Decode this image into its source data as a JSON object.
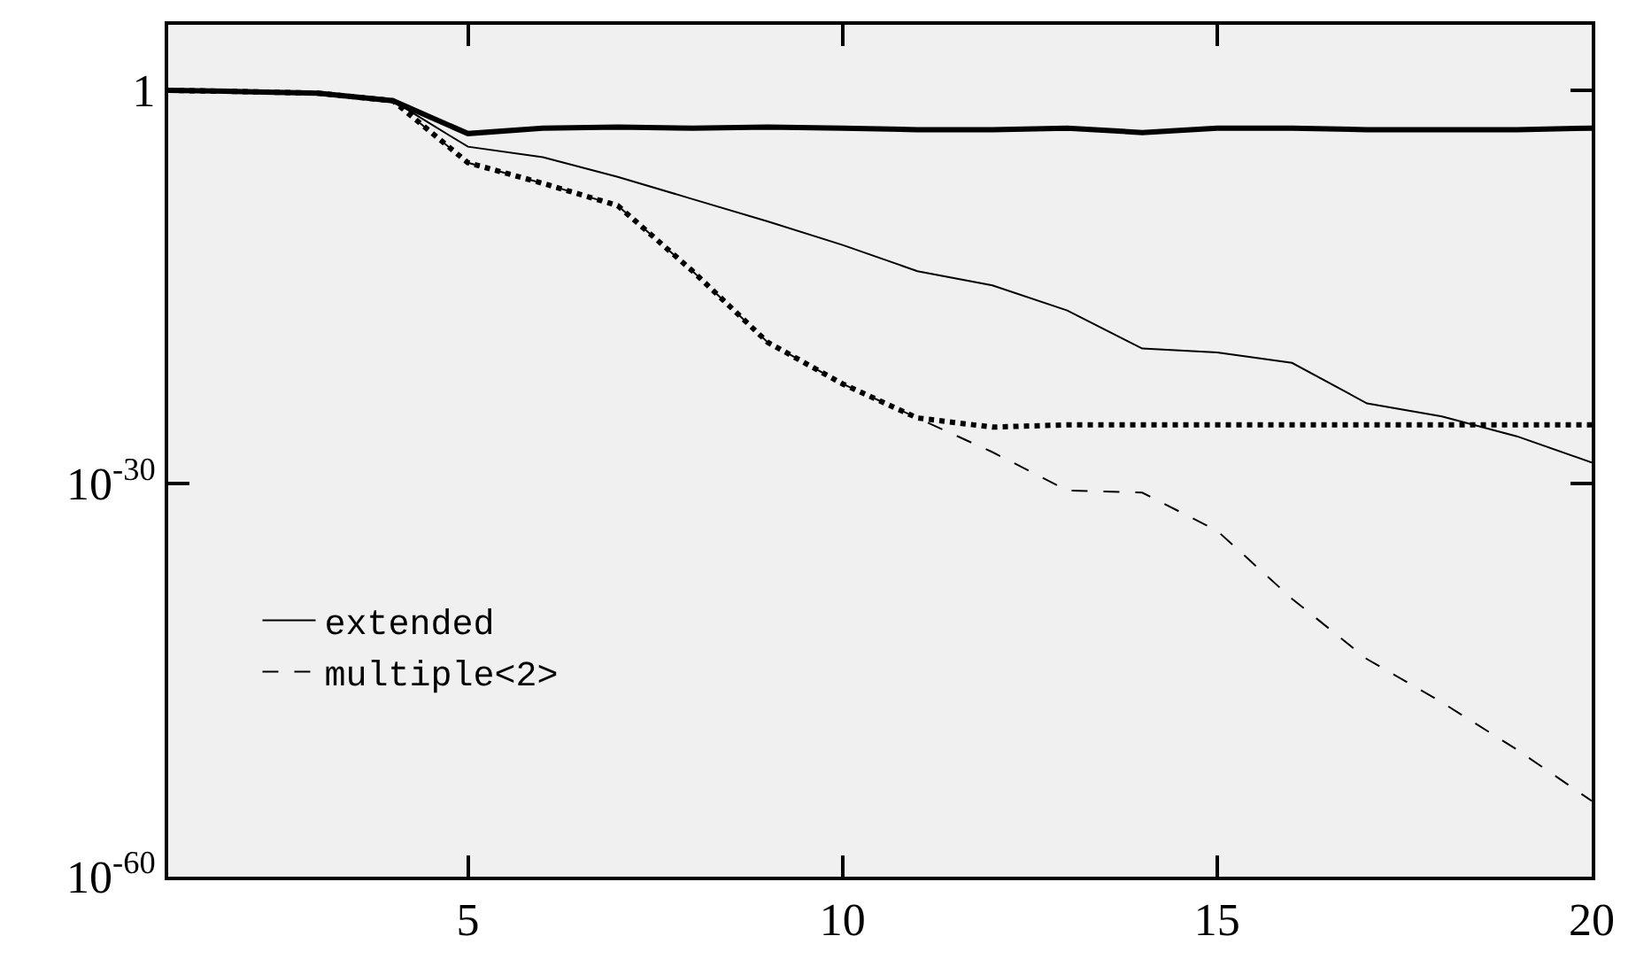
{
  "chart_data": {
    "type": "line",
    "log": "y",
    "xlim": [
      1,
      20
    ],
    "xticks": [
      5,
      10,
      15,
      20
    ],
    "ylim": [
      1e-60,
      100000.0
    ],
    "yticks": [
      {
        "value": 1,
        "label": "1"
      },
      {
        "value": 1e-30,
        "label": "10$^{-30}$"
      },
      {
        "value": 1e-60,
        "label": "10$^{-60}$"
      }
    ],
    "x": [
      1,
      2,
      3,
      4,
      5,
      6,
      7,
      8,
      9,
      10,
      11,
      12,
      13,
      14,
      15,
      16,
      17,
      18,
      19,
      20
    ],
    "legend": "bottom left",
    "grid": false,
    "marker": "none",
    "series": [
      {
        "color": "#000000",
        "line_style": "solid",
        "values": [
          1,
          0.8,
          0.6,
          0.16,
          0.0005,
          0.0013,
          0.0016,
          0.0013,
          0.0016,
          0.0013,
          0.001,
          0.001,
          0.0013,
          0.0006,
          0.0013,
          0.0013,
          0.001,
          0.001,
          0.001,
          0.0013
        ]
      },
      {
        "name": "extended",
        "color": "#000000",
        "line_style": "solid",
        "values": [
          1,
          0.8,
          0.6,
          0.16,
          5e-05,
          8e-06,
          2.5e-07,
          5e-09,
          1e-10,
          1.6e-12,
          1.6e-14,
          1.3e-15,
          1.6e-17,
          2e-20,
          1e-20,
          1.6e-21,
          1.3e-24,
          1.3e-25,
          4e-27,
          4e-29
        ]
      },
      {
        "color": "#000000",
        "line_style": "dotted",
        "values": [
          1,
          0.8,
          0.6,
          0.16,
          3e-06,
          8e-08,
          1.6e-09,
          1.6e-14,
          6e-20,
          4e-23,
          1e-25,
          2e-26,
          3e-26,
          3e-26,
          3e-26,
          3e-26,
          3e-26,
          3e-26,
          3e-26,
          3e-26
        ]
      },
      {
        "name": "multiple<2>",
        "color": "#000000",
        "line_style": "dashed",
        "values": [
          1,
          0.8,
          0.6,
          0.16,
          3e-06,
          8e-08,
          1.6e-09,
          1.6e-14,
          6e-20,
          4e-23,
          1e-25,
          2.5e-28,
          3e-31,
          2e-31,
          2.5e-34,
          1.6e-39,
          4e-44,
          2e-47,
          5e-51,
          6e-55
        ]
      }
    ]
  }
}
